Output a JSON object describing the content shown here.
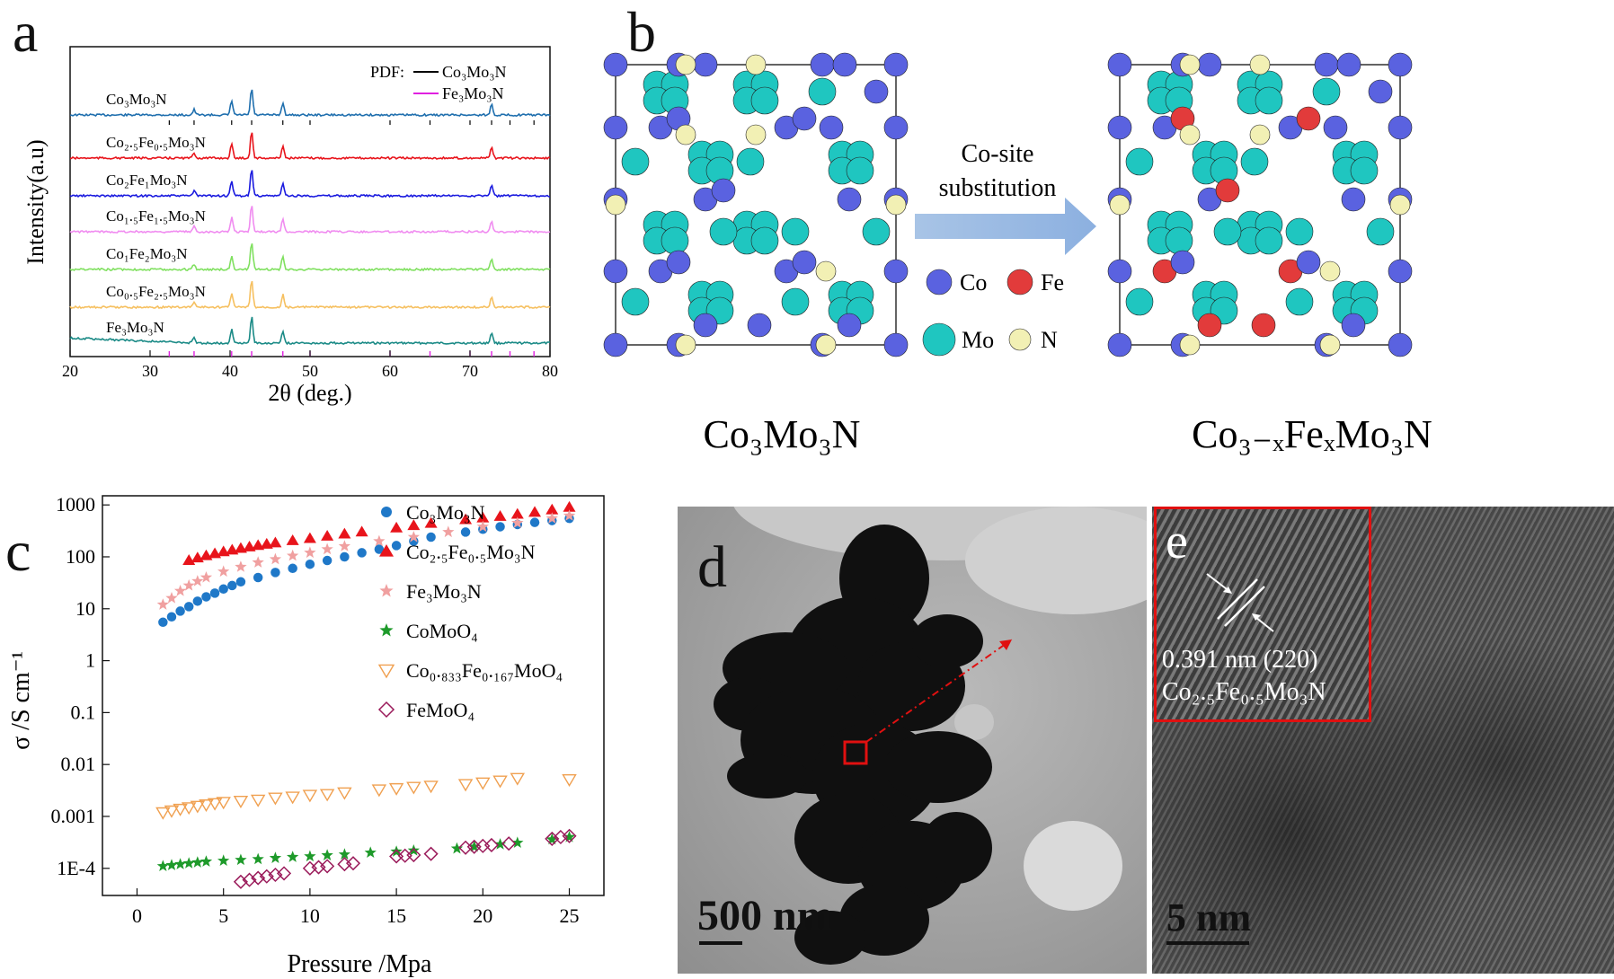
{
  "panels": {
    "a": {
      "letter": "a",
      "xlabel": "2θ (deg.)",
      "ylabel": "Intensity(a.u)",
      "xticks": [
        "20",
        "30",
        "40",
        "50",
        "60",
        "70",
        "80"
      ],
      "pdf_label": "PDF:",
      "legend": [
        {
          "name": "Co₃Mo₃N",
          "color": "#000000"
        },
        {
          "name": "Fe₃Mo₃N",
          "color": "#e020e0"
        }
      ],
      "traces": [
        {
          "label": "Co₃Mo₃N",
          "color": "#1f6fae"
        },
        {
          "label": "Co₂.₅Fe₀.₅Mo₃N",
          "color": "#e8141b"
        },
        {
          "label": "Co₂Fe₁Mo₃N",
          "color": "#1a1adf"
        },
        {
          "label": "Co₁.₅Fe₁.₅Mo₃N",
          "color": "#f08cf0"
        },
        {
          "label": "Co₁Fe₂Mo₃N",
          "color": "#80e060"
        },
        {
          "label": "Co₀.₅Fe₂.₅Mo₃N",
          "color": "#f6c060"
        },
        {
          "label": "Fe₃Mo₃N",
          "color": "#1a8a86"
        }
      ],
      "peaks_deg": [
        35.5,
        40.2,
        42.7,
        46.6,
        72.7
      ]
    },
    "b": {
      "letter": "b",
      "arrow_text": [
        "Co-site",
        "substitution"
      ],
      "legend": [
        {
          "name": "Co",
          "color": "#5a62e0"
        },
        {
          "name": "Fe",
          "color": "#e23b3b"
        },
        {
          "name": "Mo",
          "color": "#1fc6c0"
        },
        {
          "name": "N",
          "color": "#f2f0b4"
        }
      ],
      "left_caption": "Co₃Mo₃N",
      "right_caption": "Co₃₋ₓFeₓMo₃N"
    },
    "c": {
      "letter": "c",
      "xlabel": "Pressure /Mpa",
      "ylabel": "σ /S cm⁻¹",
      "xticks": [
        "0",
        "5",
        "10",
        "15",
        "20",
        "25"
      ],
      "yticks": [
        "1E-4",
        "0.001",
        "0.01",
        "0.1",
        "1",
        "10",
        "100",
        "1000"
      ]
    },
    "d": {
      "letter": "d",
      "scale_bar": "500 nm"
    },
    "e": {
      "letter": "e",
      "scale_bar": "5 nm",
      "spacing": "0.391 nm (220)",
      "phase": "Co₂.₅Fe₀.₅Mo₃N"
    }
  },
  "chart_data": {
    "type": "scatter",
    "x_label": "Pressure /Mpa",
    "y_label": "σ /S cm⁻¹",
    "y_scale": "log",
    "xlim": [
      -2,
      27
    ],
    "ylim": [
      3e-05,
      1500
    ],
    "series": [
      {
        "name": "Co₃Mo₃N",
        "marker": "circle",
        "color": "#1f78c8",
        "x": [
          1.5,
          2,
          2.5,
          3,
          3.5,
          4,
          4.5,
          5,
          5.5,
          6,
          7,
          8,
          9,
          10,
          11,
          12,
          13,
          14,
          15,
          16,
          17,
          19,
          20,
          21,
          22,
          23,
          24,
          25
        ],
        "y": [
          5.5,
          7,
          9,
          11,
          14,
          17,
          20,
          24,
          28,
          33,
          40,
          50,
          60,
          72,
          85,
          100,
          120,
          140,
          165,
          200,
          240,
          300,
          340,
          380,
          420,
          460,
          500,
          550
        ]
      },
      {
        "name": "Co₂.₅Fe₀.₅Mo₃N",
        "marker": "triangle",
        "color": "#e8141b",
        "x": [
          3,
          3.5,
          4,
          4.5,
          5,
          5.5,
          6,
          6.5,
          7,
          7.5,
          8,
          9,
          10,
          11,
          12,
          13,
          15,
          16,
          17,
          19,
          20,
          21,
          22,
          23,
          24,
          25
        ],
        "y": [
          85,
          95,
          105,
          115,
          125,
          135,
          145,
          155,
          165,
          175,
          185,
          205,
          225,
          250,
          275,
          300,
          360,
          400,
          440,
          520,
          560,
          600,
          660,
          720,
          800,
          900
        ]
      },
      {
        "name": "Fe₃Mo₃N",
        "marker": "star",
        "color": "#f0a0a0",
        "x": [
          1.5,
          2,
          2.5,
          3,
          3.5,
          4,
          5,
          6,
          7,
          8,
          9,
          10,
          11,
          12,
          14,
          16,
          18,
          20,
          22,
          24,
          25
        ],
        "y": [
          12,
          16,
          22,
          28,
          34,
          40,
          52,
          64,
          78,
          90,
          105,
          120,
          140,
          160,
          200,
          240,
          300,
          380,
          450,
          550,
          620
        ]
      },
      {
        "name": "CoMoO₄",
        "marker": "star",
        "color": "#1e9a2a",
        "x": [
          1.5,
          2,
          2.5,
          3,
          3.5,
          4,
          5,
          6,
          7,
          8,
          9,
          10,
          11,
          12,
          13.5,
          15,
          16,
          18.5,
          19.5,
          21,
          22,
          24,
          25
        ],
        "y": [
          0.00011,
          0.000115,
          0.00012,
          0.000125,
          0.00013,
          0.000135,
          0.00014,
          0.000145,
          0.00015,
          0.000158,
          0.000165,
          0.00017,
          0.000178,
          0.000185,
          0.0002,
          0.00021,
          0.00022,
          0.00024,
          0.00026,
          0.00029,
          0.00031,
          0.00036,
          0.0004
        ]
      },
      {
        "name": "Co₀.₈₃₃Fe₀.₁₆₇MoO₄",
        "marker": "triangle-down",
        "color": "#f0a050",
        "x": [
          1.5,
          2,
          2.5,
          3,
          3.5,
          4,
          4.5,
          5,
          6,
          7,
          8,
          9,
          10,
          11,
          12,
          14,
          15,
          16,
          17,
          19,
          20,
          21,
          22,
          25
        ],
        "y": [
          0.0012,
          0.0013,
          0.0014,
          0.0015,
          0.0016,
          0.0017,
          0.0018,
          0.0019,
          0.002,
          0.0021,
          0.0023,
          0.0024,
          0.0026,
          0.0027,
          0.0029,
          0.0033,
          0.0035,
          0.0037,
          0.0039,
          0.0042,
          0.0045,
          0.0049,
          0.0055,
          0.0052
        ]
      },
      {
        "name": "FeMoO₄",
        "marker": "diamond",
        "color": "#9a1a5a",
        "x": [
          6,
          6.5,
          7,
          7.5,
          8,
          8.5,
          10,
          10.5,
          11,
          12,
          12.5,
          15,
          15.5,
          16,
          17,
          19,
          19.5,
          20,
          20.5,
          21.5,
          24,
          24.5,
          25
        ],
        "y": [
          5.5e-05,
          6e-05,
          6.5e-05,
          7e-05,
          7.5e-05,
          8e-05,
          0.0001,
          0.000105,
          0.00011,
          0.00012,
          0.000125,
          0.00017,
          0.000175,
          0.00018,
          0.00019,
          0.00025,
          0.00026,
          0.00027,
          0.00028,
          0.0003,
          0.00037,
          0.0004,
          0.00042
        ]
      }
    ]
  }
}
